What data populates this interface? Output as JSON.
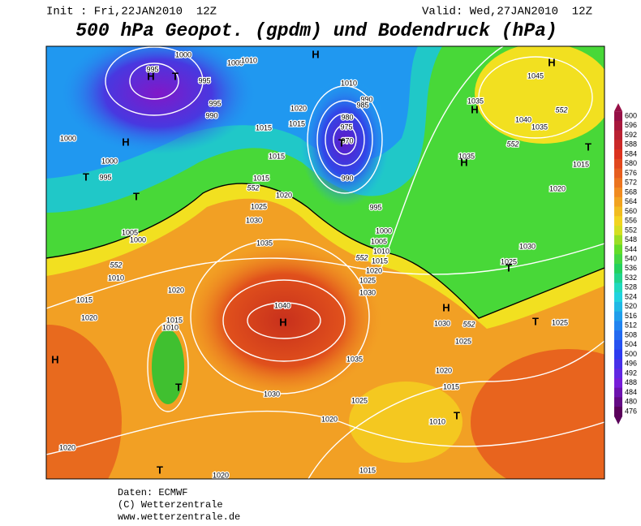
{
  "header": {
    "init": "Init : Fri,22JAN2010  12Z",
    "valid": "Valid: Wed,27JAN2010  12Z",
    "title": "500 hPa Geopot. (gpdm) und Bodendruck (hPa)"
  },
  "map": {
    "isobar_labels": [
      1000,
      995,
      995,
      995,
      990,
      1000,
      1000,
      995,
      1005,
      1010,
      1020,
      1015,
      1015,
      1015,
      1015,
      1020,
      1010,
      990,
      985,
      980,
      975,
      970,
      990,
      995,
      1000,
      1005,
      1010,
      1015,
      1020,
      1025,
      1030,
      1035,
      1040,
      1035,
      1045,
      1035,
      1015,
      1020,
      1030,
      1025,
      1030,
      1025,
      1025,
      1025,
      1030,
      1035,
      1040,
      1020,
      1015,
      1020,
      1015,
      1010,
      1005,
      1000,
      1010,
      1035,
      1030,
      1025,
      1020,
      1020,
      1015,
      1010,
      1020,
      1020,
      1015
    ],
    "contour_labels": [
      552,
      552,
      552,
      552,
      552,
      552
    ],
    "pressure_centers": [
      "H",
      "H",
      "H",
      "H",
      "H",
      "H",
      "H",
      "H",
      "H",
      "T",
      "T",
      "T",
      "T",
      "T",
      "T",
      "T",
      "T",
      "T",
      "T"
    ]
  },
  "colorbar": {
    "labels": [
      600,
      596,
      592,
      588,
      584,
      580,
      576,
      572,
      568,
      564,
      560,
      556,
      552,
      548,
      544,
      540,
      536,
      532,
      528,
      524,
      520,
      516,
      512,
      508,
      504,
      500,
      496,
      492,
      488,
      484,
      480,
      476
    ]
  },
  "footer": {
    "source": "Daten: ECMWF",
    "copyright": "(C) Wetterzentrale",
    "url": "www.wetterzentrale.de"
  }
}
